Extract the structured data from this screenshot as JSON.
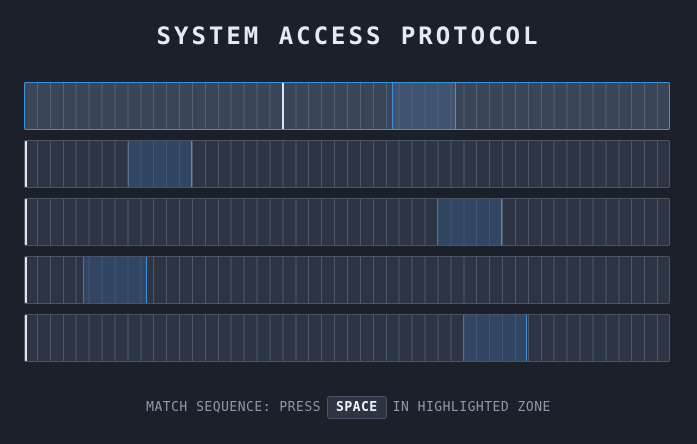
{
  "title": "SYSTEM ACCESS PROTOCOL",
  "colors": {
    "background": "#1b202b",
    "accent": "#3d92dc",
    "track": "#2d3544",
    "active_track": "#3a4557"
  },
  "segments_per_track": 50,
  "tracks": [
    {
      "active": true,
      "zone_start": 0.57,
      "zone_width": 0.1,
      "cursor": 0.4
    },
    {
      "active": false,
      "zone_start": 0.16,
      "zone_width": 0.1,
      "cursor": 0.0
    },
    {
      "active": false,
      "zone_start": 0.64,
      "zone_width": 0.1,
      "cursor": 0.0
    },
    {
      "active": false,
      "zone_start": 0.09,
      "zone_width": 0.1,
      "cursor": 0.0
    },
    {
      "active": false,
      "zone_start": 0.68,
      "zone_width": 0.1,
      "cursor": 0.0
    }
  ],
  "hint": {
    "before": "MATCH SEQUENCE: PRESS",
    "key": "SPACE",
    "after": "IN HIGHLIGHTED ZONE"
  }
}
